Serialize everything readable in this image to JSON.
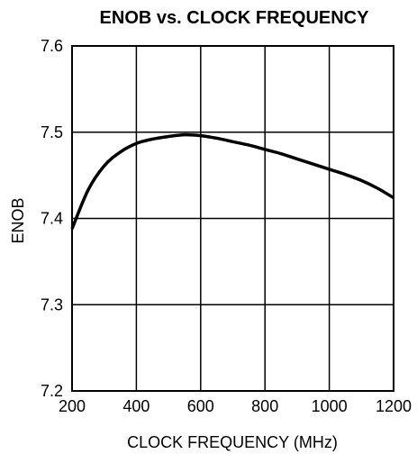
{
  "chart_data": {
    "type": "line",
    "title": "ENOB vs. CLOCK FREQUENCY",
    "xlabel": "CLOCK FREQUENCY (MHz)",
    "ylabel": "ENOB",
    "xlim": [
      200,
      1200
    ],
    "ylim": [
      7.2,
      7.6
    ],
    "x_ticks": [
      200,
      400,
      600,
      800,
      1000,
      1200
    ],
    "y_ticks": [
      7.2,
      7.3,
      7.4,
      7.5,
      7.6
    ],
    "x_tick_labels": [
      "200",
      "400",
      "600",
      "800",
      "1000",
      "1200"
    ],
    "y_tick_labels": [
      "7.2",
      "7.3",
      "7.4",
      "7.5",
      "7.6"
    ],
    "grid": true,
    "legend": "none",
    "series": [
      {
        "x": [
          200,
          250,
          300,
          350,
          400,
          450,
          500,
          550,
          600,
          650,
          700,
          750,
          800,
          850,
          900,
          950,
          1000,
          1050,
          1100,
          1150,
          1200
        ],
        "y": [
          7.388,
          7.433,
          7.461,
          7.477,
          7.487,
          7.492,
          7.495,
          7.497,
          7.496,
          7.493,
          7.489,
          7.485,
          7.48,
          7.475,
          7.469,
          7.463,
          7.457,
          7.451,
          7.444,
          7.435,
          7.424
        ],
        "color": "#000000"
      }
    ]
  }
}
